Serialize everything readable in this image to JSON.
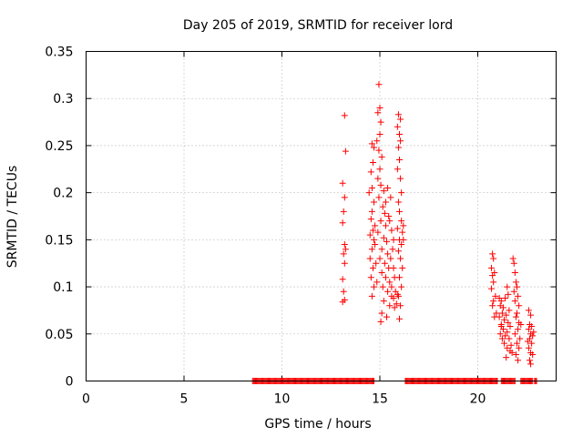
{
  "chart_data": {
    "type": "scatter",
    "title": "Day 205 of 2019, SRMTID for receiver lord",
    "xlabel": "GPS time / hours",
    "ylabel": "SRMTID / TECUs",
    "xlim": [
      0,
      24
    ],
    "ylim": [
      0,
      0.35
    ],
    "xticks": [
      0,
      5,
      10,
      15,
      20
    ],
    "xtick_labels": [
      "0",
      "5",
      "10",
      "15",
      "20"
    ],
    "yticks": [
      0,
      0.05,
      0.1,
      0.15,
      0.2,
      0.25,
      0.3,
      0.35
    ],
    "ytick_labels": [
      "0",
      "0.05",
      "0.1",
      "0.15",
      "0.2",
      "0.25",
      "0.3",
      "0.35"
    ],
    "grid": true,
    "marker": "+",
    "color": "#ff0000",
    "series": [
      {
        "name": "SRMTID",
        "points": [
          [
            13.2,
            0.282
          ],
          [
            13.25,
            0.244
          ],
          [
            13.1,
            0.21
          ],
          [
            13.2,
            0.195
          ],
          [
            13.15,
            0.18
          ],
          [
            13.1,
            0.168
          ],
          [
            13.2,
            0.145
          ],
          [
            13.15,
            0.135
          ],
          [
            13.2,
            0.125
          ],
          [
            13.1,
            0.108
          ],
          [
            13.15,
            0.095
          ],
          [
            13.2,
            0.086
          ],
          [
            13.1,
            0.084
          ],
          [
            13.25,
            0.14
          ],
          [
            14.6,
            0.252
          ],
          [
            14.7,
            0.248
          ],
          [
            14.65,
            0.232
          ],
          [
            14.55,
            0.222
          ],
          [
            14.6,
            0.205
          ],
          [
            14.7,
            0.19
          ],
          [
            14.6,
            0.18
          ],
          [
            14.55,
            0.172
          ],
          [
            14.65,
            0.16
          ],
          [
            14.7,
            0.15
          ],
          [
            14.6,
            0.14
          ],
          [
            14.5,
            0.13
          ],
          [
            14.65,
            0.12
          ],
          [
            14.55,
            0.11
          ],
          [
            14.7,
            0.1
          ],
          [
            14.6,
            0.09
          ],
          [
            14.5,
            0.155
          ],
          [
            14.45,
            0.2
          ],
          [
            14.75,
            0.165
          ],
          [
            14.95,
            0.315
          ],
          [
            15.0,
            0.29
          ],
          [
            14.9,
            0.285
          ],
          [
            15.05,
            0.275
          ],
          [
            15.0,
            0.262
          ],
          [
            14.85,
            0.255
          ],
          [
            14.95,
            0.245
          ],
          [
            15.1,
            0.238
          ],
          [
            15.0,
            0.225
          ],
          [
            14.9,
            0.215
          ],
          [
            15.05,
            0.208
          ],
          [
            15.2,
            0.202
          ],
          [
            14.95,
            0.195
          ],
          [
            15.15,
            0.185
          ],
          [
            15.25,
            0.178
          ],
          [
            15.05,
            0.17
          ],
          [
            15.3,
            0.165
          ],
          [
            14.9,
            0.158
          ],
          [
            15.2,
            0.152
          ],
          [
            15.35,
            0.148
          ],
          [
            15.1,
            0.14
          ],
          [
            15.4,
            0.135
          ],
          [
            15.0,
            0.13
          ],
          [
            15.25,
            0.125
          ],
          [
            15.45,
            0.12
          ],
          [
            15.1,
            0.115
          ],
          [
            15.3,
            0.11
          ],
          [
            15.5,
            0.105
          ],
          [
            15.15,
            0.1
          ],
          [
            15.4,
            0.095
          ],
          [
            15.6,
            0.09
          ],
          [
            15.2,
            0.085
          ],
          [
            15.5,
            0.08
          ],
          [
            15.1,
            0.072
          ],
          [
            15.35,
            0.068
          ],
          [
            15.05,
            0.063
          ],
          [
            14.85,
            0.105
          ],
          [
            14.8,
            0.125
          ],
          [
            14.75,
            0.145
          ],
          [
            15.55,
            0.195
          ],
          [
            15.45,
            0.175
          ],
          [
            15.6,
            0.16
          ],
          [
            15.7,
            0.15
          ],
          [
            15.65,
            0.14
          ],
          [
            15.55,
            0.13
          ],
          [
            15.7,
            0.12
          ],
          [
            15.75,
            0.11
          ],
          [
            15.6,
            0.1
          ],
          [
            15.8,
            0.095
          ],
          [
            15.7,
            0.088
          ],
          [
            15.85,
            0.082
          ],
          [
            15.75,
            0.078
          ],
          [
            15.9,
            0.092
          ],
          [
            15.4,
            0.205
          ],
          [
            15.3,
            0.19
          ],
          [
            15.5,
            0.17
          ],
          [
            15.95,
            0.283
          ],
          [
            16.05,
            0.278
          ],
          [
            15.9,
            0.27
          ],
          [
            16.0,
            0.262
          ],
          [
            16.05,
            0.255
          ],
          [
            15.95,
            0.248
          ],
          [
            16.0,
            0.235
          ],
          [
            15.9,
            0.225
          ],
          [
            16.05,
            0.215
          ],
          [
            16.1,
            0.2
          ],
          [
            15.95,
            0.19
          ],
          [
            16.0,
            0.18
          ],
          [
            16.1,
            0.17
          ],
          [
            15.9,
            0.162
          ],
          [
            16.15,
            0.158
          ],
          [
            16.0,
            0.15
          ],
          [
            16.1,
            0.145
          ],
          [
            15.95,
            0.138
          ],
          [
            16.05,
            0.13
          ],
          [
            16.15,
            0.12
          ],
          [
            16.0,
            0.11
          ],
          [
            16.1,
            0.1
          ],
          [
            15.95,
            0.09
          ],
          [
            16.05,
            0.08
          ],
          [
            16.0,
            0.066
          ],
          [
            16.2,
            0.165
          ],
          [
            16.2,
            0.15
          ],
          [
            20.75,
            0.135
          ],
          [
            20.8,
            0.13
          ],
          [
            20.7,
            0.12
          ],
          [
            20.85,
            0.115
          ],
          [
            20.75,
            0.112
          ],
          [
            20.8,
            0.105
          ],
          [
            20.7,
            0.098
          ],
          [
            20.9,
            0.09
          ],
          [
            20.8,
            0.085
          ],
          [
            20.75,
            0.08
          ],
          [
            20.95,
            0.072
          ],
          [
            20.85,
            0.068
          ],
          [
            21.1,
            0.088
          ],
          [
            21.2,
            0.085
          ],
          [
            21.15,
            0.08
          ],
          [
            21.3,
            0.078
          ],
          [
            21.25,
            0.072
          ],
          [
            21.1,
            0.068
          ],
          [
            21.35,
            0.065
          ],
          [
            21.2,
            0.06
          ],
          [
            21.3,
            0.055
          ],
          [
            21.15,
            0.05
          ],
          [
            21.4,
            0.048
          ],
          [
            21.25,
            0.045
          ],
          [
            21.35,
            0.04
          ],
          [
            21.5,
            0.035
          ],
          [
            21.45,
            0.025
          ],
          [
            21.2,
            0.058
          ],
          [
            21.4,
            0.088
          ],
          [
            21.5,
            0.1
          ],
          [
            21.55,
            0.092
          ],
          [
            21.6,
            0.075
          ],
          [
            21.45,
            0.07
          ],
          [
            21.55,
            0.062
          ],
          [
            21.65,
            0.058
          ],
          [
            21.5,
            0.052
          ],
          [
            21.6,
            0.045
          ],
          [
            21.7,
            0.038
          ],
          [
            21.65,
            0.032
          ],
          [
            21.75,
            0.03
          ],
          [
            21.8,
            0.13
          ],
          [
            21.85,
            0.125
          ],
          [
            21.9,
            0.115
          ],
          [
            21.95,
            0.105
          ],
          [
            22.0,
            0.1
          ],
          [
            21.85,
            0.095
          ],
          [
            22.05,
            0.09
          ],
          [
            21.9,
            0.085
          ],
          [
            22.1,
            0.08
          ],
          [
            22.0,
            0.072
          ],
          [
            21.95,
            0.068
          ],
          [
            22.1,
            0.062
          ],
          [
            22.05,
            0.055
          ],
          [
            21.9,
            0.05
          ],
          [
            22.15,
            0.045
          ],
          [
            22.0,
            0.04
          ],
          [
            22.1,
            0.035
          ],
          [
            21.95,
            0.028
          ],
          [
            22.05,
            0.022
          ],
          [
            22.2,
            0.06
          ],
          [
            22.6,
            0.075
          ],
          [
            22.7,
            0.07
          ],
          [
            22.65,
            0.06
          ],
          [
            22.75,
            0.058
          ],
          [
            22.6,
            0.055
          ],
          [
            22.7,
            0.05
          ],
          [
            22.8,
            0.048
          ],
          [
            22.65,
            0.045
          ],
          [
            22.75,
            0.04
          ],
          [
            22.6,
            0.035
          ],
          [
            22.7,
            0.03
          ],
          [
            22.8,
            0.028
          ],
          [
            22.65,
            0.022
          ],
          [
            22.7,
            0.018
          ],
          [
            22.55,
            0.042
          ],
          [
            22.85,
            0.052
          ]
        ]
      }
    ],
    "zero_bands": [
      [
        8.5,
        14.7
      ],
      [
        16.3,
        21.0
      ],
      [
        21.2,
        21.9
      ],
      [
        22.2,
        22.8
      ],
      [
        22.9,
        23.0
      ]
    ]
  }
}
